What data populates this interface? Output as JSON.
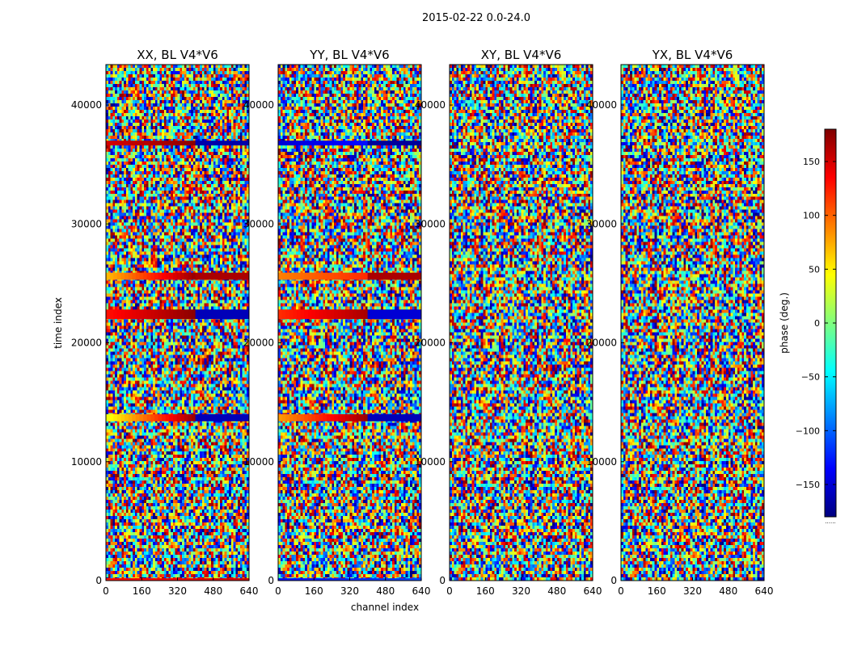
{
  "figure": {
    "suptitle": "2015-02-22 0.0-24.0",
    "xlabel": "channel index",
    "ylabel": "time index",
    "colorbar_label": "phase (deg.)",
    "colorbar_footer": "......",
    "colormap": [
      "#00007f",
      "#0000ff",
      "#007fff",
      "#00ffff",
      "#7fff7f",
      "#ffff00",
      "#ff7f00",
      "#ff0000",
      "#7f0000"
    ]
  },
  "chart_data": [
    {
      "type": "heatmap",
      "title": "XX, BL V4*V6",
      "xlabel": "channel index",
      "ylabel": "time index",
      "xlim": [
        0,
        640
      ],
      "ylim": [
        0,
        43400
      ],
      "xticks": [
        0,
        160,
        320,
        480,
        640
      ],
      "yticks": [
        0,
        10000,
        20000,
        30000,
        40000
      ],
      "ytick_labels": [
        "0",
        "10000",
        "20000",
        "30000",
        "40000"
      ],
      "coherent_bands": [
        {
          "t0": 13400,
          "t1": 14000,
          "c1": 400,
          "phase_start": 40,
          "phase_end": 170,
          "tail_phase": -160
        },
        {
          "t0": 22000,
          "t1": 22800,
          "c1": 400,
          "phase_start": 130,
          "phase_end": 175,
          "tail_phase": -160
        },
        {
          "t0": 25300,
          "t1": 25900,
          "c1": 400,
          "phase_start": 70,
          "phase_end": 170,
          "tail_phase": 165
        },
        {
          "t0": 36600,
          "t1": 37000,
          "c1": 400,
          "phase_start": 150,
          "phase_end": 175,
          "tail_phase": -165
        },
        {
          "t0": 0,
          "t1": 200,
          "c1": 640,
          "phase_start": 130,
          "phase_end": 150,
          "tail_phase": 140
        }
      ],
      "colorbar": {
        "label": "phase (deg.)",
        "range": [
          -180,
          180
        ],
        "ticks": [
          -150,
          -100,
          -50,
          0,
          50,
          100,
          150
        ]
      }
    },
    {
      "type": "heatmap",
      "title": "YY, BL V4*V6",
      "xlabel": "channel index",
      "ylabel": "time index",
      "xlim": [
        0,
        640
      ],
      "ylim": [
        0,
        43400
      ],
      "xticks": [
        0,
        160,
        320,
        480,
        640
      ],
      "yticks": [
        0,
        10000,
        20000,
        30000,
        40000
      ],
      "ytick_labels": [
        "0",
        "10000",
        "20000",
        "30000",
        "40000"
      ],
      "coherent_bands": [
        {
          "t0": 13400,
          "t1": 14000,
          "c1": 400,
          "phase_start": 80,
          "phase_end": 170,
          "tail_phase": -160
        },
        {
          "t0": 22000,
          "t1": 22800,
          "c1": 400,
          "phase_start": 120,
          "phase_end": 165,
          "tail_phase": -150
        },
        {
          "t0": 25300,
          "t1": 25900,
          "c1": 400,
          "phase_start": 90,
          "phase_end": 120,
          "tail_phase": 165
        },
        {
          "t0": 36600,
          "t1": 37000,
          "c1": 400,
          "phase_start": -150,
          "phase_end": -130,
          "tail_phase": -170
        },
        {
          "t0": 0,
          "t1": 200,
          "c1": 640,
          "phase_start": -130,
          "phase_end": -110,
          "tail_phase": -120
        }
      ],
      "colorbar": {
        "label": "phase (deg.)",
        "range": [
          -180,
          180
        ],
        "ticks": [
          -150,
          -100,
          -50,
          0,
          50,
          100,
          150
        ]
      }
    },
    {
      "type": "heatmap",
      "title": "XY, BL V4*V6",
      "xlabel": "channel index",
      "ylabel": "time index",
      "xlim": [
        0,
        640
      ],
      "ylim": [
        0,
        43400
      ],
      "xticks": [
        0,
        160,
        320,
        480,
        640
      ],
      "yticks": [
        0,
        10000,
        20000,
        30000,
        40000
      ],
      "ytick_labels": [
        "0",
        "10000",
        "20000",
        "30000",
        "40000"
      ],
      "coherent_bands": [],
      "colorbar": {
        "label": "phase (deg.)",
        "range": [
          -180,
          180
        ],
        "ticks": [
          -150,
          -100,
          -50,
          0,
          50,
          100,
          150
        ]
      }
    },
    {
      "type": "heatmap",
      "title": "YX, BL V4*V6",
      "xlabel": "channel index",
      "ylabel": "time index",
      "xlim": [
        0,
        640
      ],
      "ylim": [
        0,
        43400
      ],
      "xticks": [
        0,
        160,
        320,
        480,
        640
      ],
      "yticks": [
        0,
        10000,
        20000,
        30000,
        40000
      ],
      "ytick_labels": [
        "0",
        "10000",
        "20000",
        "30000",
        "40000"
      ],
      "coherent_bands": [],
      "colorbar": {
        "label": "phase (deg.)",
        "range": [
          -180,
          180
        ],
        "ticks": [
          -150,
          -100,
          -50,
          0,
          50,
          100,
          150
        ]
      }
    }
  ]
}
